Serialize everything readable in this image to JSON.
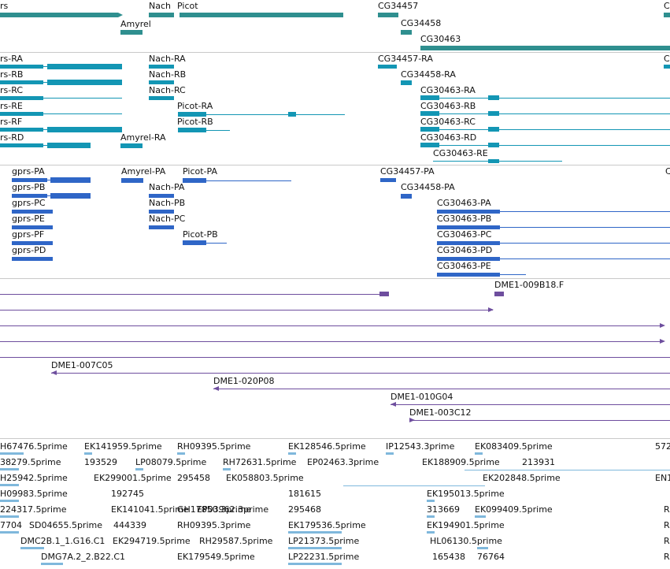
{
  "colors": {
    "gene": "#2f8f8f",
    "transcript": "#1396b4",
    "protein": "#2f66c7",
    "clone": "#6e4e9e",
    "est": "#7fb8dc",
    "separator": "#c9c9c9"
  },
  "genes": [
    "rs",
    "Nach",
    "Picot",
    "Amyrel",
    "CG34457",
    "CG34458",
    "CG30463",
    "C"
  ],
  "transcripts": [
    "rs-RA",
    "rs-RB",
    "rs-RC",
    "rs-RE",
    "rs-RF",
    "rs-RD",
    "Nach-RA",
    "Nach-RB",
    "Nach-RC",
    "Picot-RA",
    "Picot-RB",
    "Amyrel-RA",
    "CG34457-RA",
    "CG34458-RA",
    "CG30463-RA",
    "CG30463-RB",
    "CG30463-RC",
    "CG30463-RD",
    "CG30463-RE",
    "C"
  ],
  "proteins": [
    "gprs-PA",
    "gprs-PB",
    "gprs-PC",
    "gprs-PE",
    "gprs-PF",
    "gprs-PD",
    "Amyrel-PA",
    "Picot-PA",
    "Nach-PA",
    "Nach-PB",
    "Nach-PC",
    "Picot-PB",
    "CG34457-PA",
    "CG34458-PA",
    "CG30463-PA",
    "CG30463-PB",
    "CG30463-PC",
    "CG30463-PD",
    "CG30463-PE",
    "C"
  ],
  "clones": [
    "DME1-009B18.F",
    "DME1-007C05",
    "DME1-020P08",
    "DME1-010G04",
    "DME1-003C12"
  ],
  "ests": [
    "H67476.5prime",
    "EK141959.5prime",
    "RH09395.5prime",
    "EK128546.5prime",
    "IP12543.3prime",
    "EK083409.5prime",
    "572",
    "38279.5prime",
    "193529",
    "LP08079.5prime",
    "RH72631.5prime",
    "EP02463.3prime",
    "EK188909.5prime",
    "213931",
    "H25942.5prime",
    "EK299001.5prime",
    "295458",
    "EK058803.5prime",
    "EK202848.5prime",
    "EN1",
    "H09983.5prime",
    "192745",
    "181615",
    "EK195013.5prime",
    "224317.5prime",
    "EK141041.5prime",
    "GH17850.3prime",
    "EP03962.3prime",
    "295468",
    "313669",
    "EK099409.5prime",
    "R",
    "7704",
    "SD04655.5prime",
    "444339",
    "RH09395.3prime",
    "EK179536.5prime",
    "EK194901.5prime",
    "DMC2B.1_1.G16.C1",
    "EK294719.5prime",
    "RH29587.5prime",
    "LP21373.5prime",
    "HL06130.5prime",
    "DMG7A.2_2.B22.C1",
    "EK179549.5prime",
    "LP22231.5prime",
    "165438",
    "76764"
  ]
}
